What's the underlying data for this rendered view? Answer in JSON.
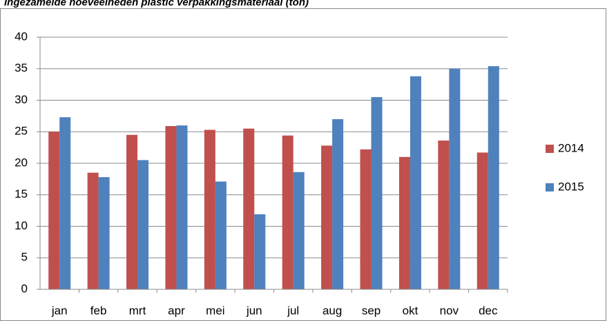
{
  "chart_data": {
    "type": "bar",
    "title": "Ingezamelde hoeveelheden plastic verpakkingsmateriaal (ton)",
    "categories": [
      "jan",
      "feb",
      "mrt",
      "apr",
      "mei",
      "jun",
      "jul",
      "aug",
      "sep",
      "okt",
      "nov",
      "dec"
    ],
    "series": [
      {
        "name": "2014",
        "color": "#c0504d",
        "values": [
          25.0,
          18.5,
          24.5,
          25.9,
          25.3,
          25.5,
          24.4,
          22.8,
          22.2,
          21.0,
          23.6,
          21.7
        ]
      },
      {
        "name": "2015",
        "color": "#4f81bd",
        "values": [
          27.3,
          17.8,
          20.5,
          26.0,
          17.1,
          11.9,
          18.6,
          27.0,
          30.5,
          33.8,
          35.0,
          35.4
        ]
      }
    ],
    "ylim": [
      0,
      40
    ],
    "yticks": [
      0,
      5,
      10,
      15,
      20,
      25,
      30,
      35,
      40
    ],
    "grid": true,
    "legend": "right"
  }
}
